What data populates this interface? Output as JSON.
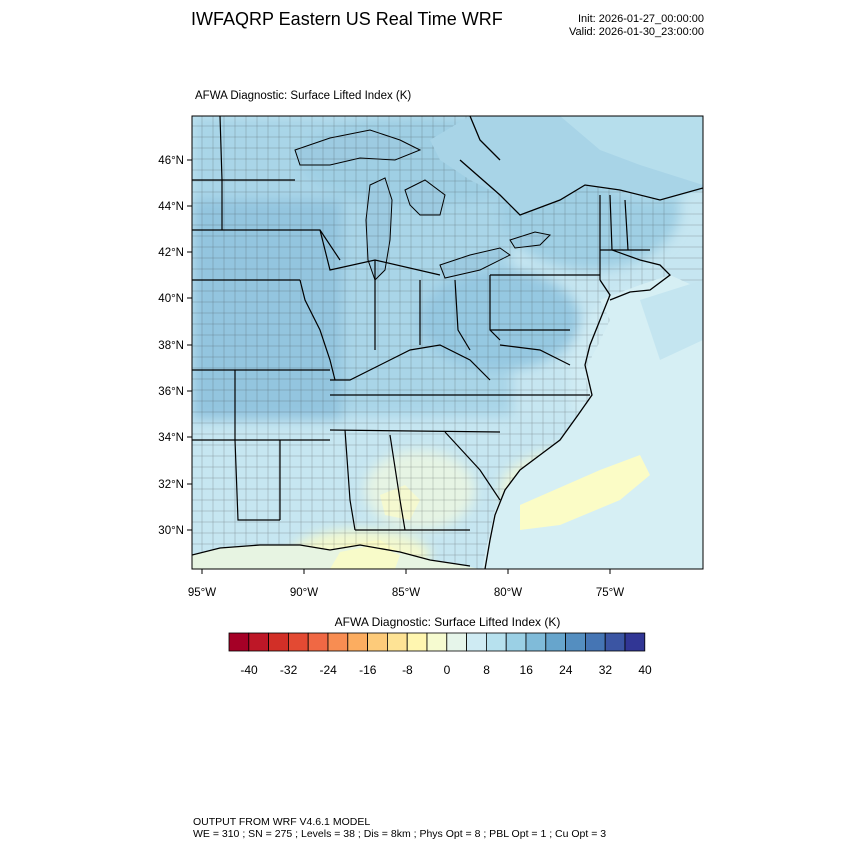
{
  "header": {
    "title": "IWFAQRP Eastern US Real Time WRF",
    "init": "Init: 2026-01-27_00:00:00",
    "valid": "Valid: 2026-01-30_23:00:00"
  },
  "plot": {
    "title": "AFWA Diagnostic: Surface Lifted Index   (K)",
    "lat_labels": [
      "46°N",
      "44°N",
      "42°N",
      "40°N",
      "38°N",
      "36°N",
      "34°N",
      "32°N",
      "30°N"
    ],
    "lon_labels": [
      "95°W",
      "90°W",
      "85°W",
      "80°W",
      "75°W"
    ]
  },
  "colorbar": {
    "title": "AFWA Diagnostic: Surface Lifted Index  (K)",
    "tick_labels": [
      "-40",
      "-32",
      "-24",
      "-16",
      "-8",
      "0",
      "8",
      "16",
      "24",
      "32",
      "40"
    ],
    "colors": [
      "#a50026",
      "#be1727",
      "#d22f27",
      "#e34a33",
      "#f06844",
      "#f88d52",
      "#fcad60",
      "#fdcb7a",
      "#fee395",
      "#fff6b0",
      "#f6fbd0",
      "#e6f5ea",
      "#cfebf3",
      "#b7e1ee",
      "#9bd0e5",
      "#80bbd9",
      "#67a5cc",
      "#548ec0",
      "#4575b4",
      "#3b55a3",
      "#313695"
    ]
  },
  "footer": {
    "line1": "OUTPUT FROM WRF V4.6.1 MODEL",
    "line2": "WE = 310 ; SN = 275 ; Levels = 38 ; Dis = 8km ; Phys Opt = 8 ; PBL Opt = 1 ; Cu Opt = 3"
  }
}
